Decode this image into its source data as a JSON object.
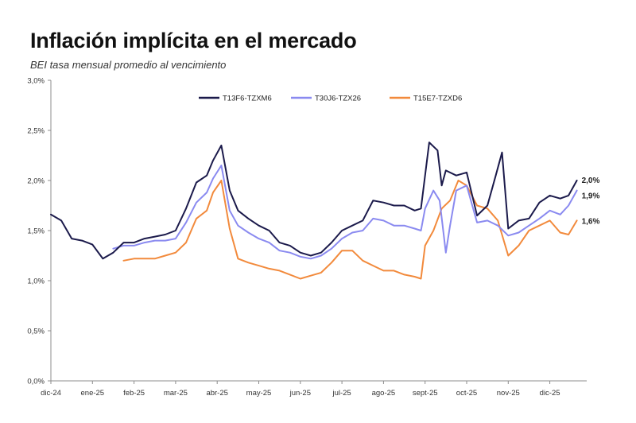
{
  "title": "Inflación implícita en el mercado",
  "subtitle": "BEI tasa mensual promedio al vencimiento",
  "chart_data": {
    "type": "line",
    "title": "Inflación implícita en el mercado",
    "subtitle": "BEI tasa mensual promedio al vencimiento",
    "xlabel": "",
    "ylabel": "",
    "ylim": [
      0,
      3.0
    ],
    "yticks": [
      0,
      0.5,
      1.0,
      1.5,
      2.0,
      2.5,
      3.0
    ],
    "ytick_labels": [
      "0,0%",
      "0,5%",
      "1,0%",
      "1,5%",
      "2,0%",
      "2,5%",
      "3,0%"
    ],
    "xlim": [
      0,
      12.85
    ],
    "xticks": [
      0,
      1,
      2,
      3,
      4,
      5,
      6,
      7,
      8,
      9,
      10,
      11,
      12
    ],
    "xtick_labels": [
      "dic-24",
      "ene-25",
      "feb-25",
      "mar-25",
      "abr-25",
      "may-25",
      "jun-25",
      "jul-25",
      "ago-25",
      "sept-25",
      "oct-25",
      "nov-25",
      "dic-25"
    ],
    "legend_position": "top-center",
    "series": [
      {
        "name": "T13F6-TZXM6",
        "color": "#1b1a4b",
        "end_label": "2,0%",
        "x": [
          0,
          0.25,
          0.5,
          0.75,
          1.0,
          1.25,
          1.5,
          1.75,
          2.0,
          2.25,
          2.5,
          2.75,
          3.0,
          3.25,
          3.5,
          3.75,
          3.9,
          4.1,
          4.3,
          4.5,
          4.75,
          5.0,
          5.25,
          5.5,
          5.75,
          6.0,
          6.25,
          6.5,
          6.75,
          7.0,
          7.25,
          7.5,
          7.75,
          8.0,
          8.25,
          8.5,
          8.75,
          8.9,
          9.1,
          9.3,
          9.4,
          9.5,
          9.75,
          10.0,
          10.25,
          10.5,
          10.7,
          10.85,
          11.0,
          11.25,
          11.5,
          11.75,
          12.0,
          12.25,
          12.45,
          12.65
        ],
        "values": [
          1.66,
          1.6,
          1.42,
          1.4,
          1.36,
          1.22,
          1.28,
          1.38,
          1.38,
          1.42,
          1.44,
          1.46,
          1.5,
          1.72,
          1.98,
          2.05,
          2.2,
          2.35,
          1.9,
          1.7,
          1.62,
          1.55,
          1.5,
          1.38,
          1.35,
          1.28,
          1.25,
          1.28,
          1.38,
          1.5,
          1.55,
          1.6,
          1.8,
          1.78,
          1.75,
          1.75,
          1.7,
          1.72,
          2.38,
          2.3,
          1.95,
          2.1,
          2.05,
          2.08,
          1.65,
          1.75,
          2.05,
          2.28,
          1.52,
          1.6,
          1.62,
          1.78,
          1.85,
          1.82,
          1.85,
          2.0
        ]
      },
      {
        "name": "T30J6-TZX26",
        "color": "#8a8af0",
        "end_label": "1,9%",
        "x": [
          1.5,
          1.75,
          2.0,
          2.25,
          2.5,
          2.75,
          3.0,
          3.25,
          3.5,
          3.75,
          3.9,
          4.1,
          4.3,
          4.5,
          4.75,
          5.0,
          5.25,
          5.5,
          5.75,
          6.0,
          6.25,
          6.5,
          6.75,
          7.0,
          7.25,
          7.5,
          7.75,
          8.0,
          8.25,
          8.5,
          8.75,
          8.9,
          9.0,
          9.2,
          9.35,
          9.5,
          9.6,
          9.75,
          10.0,
          10.25,
          10.5,
          10.75,
          11.0,
          11.25,
          11.5,
          11.75,
          12.0,
          12.25,
          12.45,
          12.65
        ],
        "values": [
          1.32,
          1.35,
          1.35,
          1.38,
          1.4,
          1.4,
          1.42,
          1.58,
          1.78,
          1.88,
          2.02,
          2.15,
          1.7,
          1.55,
          1.48,
          1.42,
          1.38,
          1.3,
          1.28,
          1.24,
          1.22,
          1.25,
          1.32,
          1.42,
          1.48,
          1.5,
          1.62,
          1.6,
          1.55,
          1.55,
          1.52,
          1.5,
          1.72,
          1.9,
          1.8,
          1.28,
          1.55,
          1.9,
          1.95,
          1.58,
          1.6,
          1.55,
          1.45,
          1.48,
          1.55,
          1.62,
          1.7,
          1.66,
          1.75,
          1.9
        ]
      },
      {
        "name": "T15E7-TZXD6",
        "color": "#f28a3c",
        "end_label": "1,6%",
        "x": [
          1.75,
          2.0,
          2.25,
          2.5,
          2.75,
          3.0,
          3.25,
          3.5,
          3.75,
          3.9,
          4.1,
          4.3,
          4.5,
          4.75,
          5.0,
          5.25,
          5.5,
          5.75,
          6.0,
          6.25,
          6.5,
          6.75,
          7.0,
          7.25,
          7.5,
          7.75,
          8.0,
          8.25,
          8.5,
          8.75,
          8.9,
          9.0,
          9.2,
          9.4,
          9.6,
          9.8,
          10.0,
          10.25,
          10.5,
          10.75,
          11.0,
          11.25,
          11.5,
          11.75,
          12.0,
          12.25,
          12.45,
          12.65
        ],
        "values": [
          1.2,
          1.22,
          1.22,
          1.22,
          1.25,
          1.28,
          1.38,
          1.62,
          1.7,
          1.88,
          2.0,
          1.52,
          1.22,
          1.18,
          1.15,
          1.12,
          1.1,
          1.06,
          1.02,
          1.05,
          1.08,
          1.18,
          1.3,
          1.3,
          1.2,
          1.15,
          1.1,
          1.1,
          1.06,
          1.04,
          1.02,
          1.35,
          1.5,
          1.72,
          1.8,
          2.0,
          1.95,
          1.75,
          1.72,
          1.6,
          1.25,
          1.35,
          1.5,
          1.55,
          1.6,
          1.48,
          1.46,
          1.6
        ]
      }
    ]
  }
}
